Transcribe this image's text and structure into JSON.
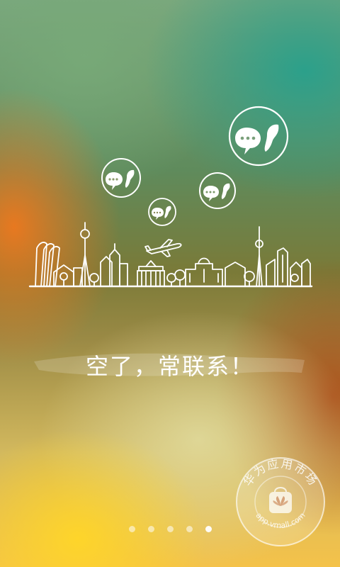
{
  "slogan": "空了，常联系！",
  "pager": {
    "count": 5,
    "active_index": 4
  },
  "badge": {
    "top_text": "华为应用市场",
    "bottom_text": "app.vmall.com",
    "icon": "huawei-shopping-bag-icon"
  },
  "illustration": {
    "bubbles_icon": "chat-bubble-logo-icon",
    "skyline_icon": "city-skyline-icon",
    "plane_icon": "airplane-icon"
  }
}
